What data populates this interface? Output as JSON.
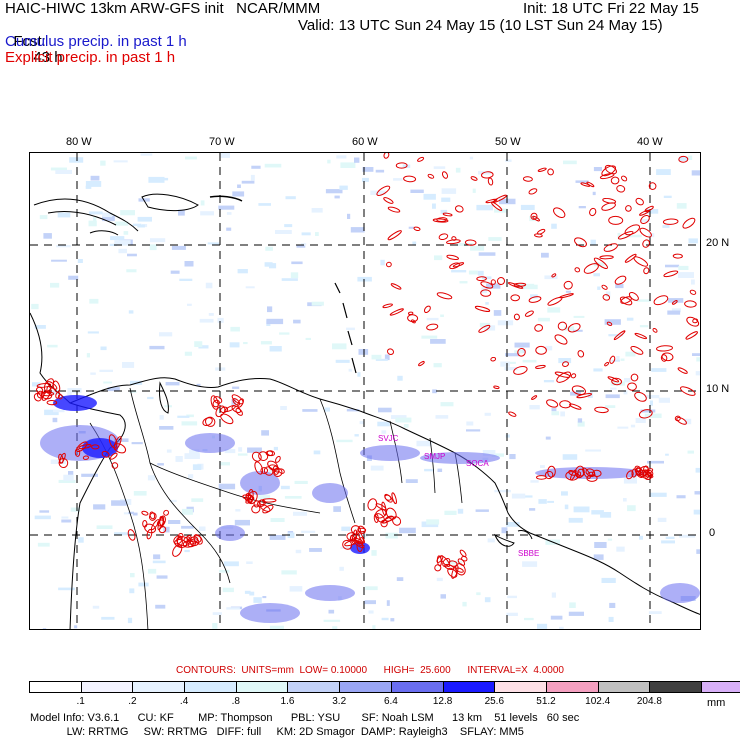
{
  "header": {
    "model_title": "HAIC-HIWC 13km ARW-GFS init   NCAR/MMM",
    "init": "Init: 18 UTC Fri 22 May 15",
    "fcst_label": "Fcst:",
    "fcst_value": "43 h",
    "valid": "Valid: 13 UTC Sun 24 May 15 (10 LST Sun 24 May 15)",
    "cumulus_label": "Cumulus precip. in past 1 h",
    "explicit_label": "Explicit precip. in past 1 h"
  },
  "colors": {
    "cumulus": "#1a1acc",
    "explicit": "#e00000",
    "station": "#cc00cc",
    "grid": "#000000"
  },
  "map": {
    "lon_labels": [
      "80 W",
      "70 W",
      "60 W",
      "50 W",
      "40 W"
    ],
    "lat_labels": [
      "20 N",
      "10 N",
      "0"
    ],
    "stations": [
      "SVJC",
      "SMJP",
      "SOCA",
      "SBBE"
    ]
  },
  "legend": {
    "contours_line": "CONTOURS:  UNITS=mm  LOW= 0.10000      HIGH=  25.600      INTERVAL=X  4.0000",
    "units": "mm",
    "colors": [
      "#ffffff",
      "#f3f3ff",
      "#e6f2ff",
      "#d6ecff",
      "#e0f8f8",
      "#c3d2f8",
      "#9aa6f4",
      "#6a6ef0",
      "#1a1aff",
      "#fde0e6",
      "#f4a0c0",
      "#c0c0c0",
      "#404040",
      "#d8b0f8"
    ],
    "tick_labels": [
      ".1",
      ".2",
      ".4",
      ".8",
      "1.6",
      "3.2",
      "6.4",
      "12.8",
      "25.6",
      "51.2",
      "102.4",
      "204.8"
    ]
  },
  "footer": {
    "line1": "Model Info: V3.6.1      CU: KF        MP: Thompson      PBL: YSU       SF: Noah LSM      13 km    51 levels   60 sec",
    "line2": "            LW: RRTMG     SW: RRTMG   DIFF: full     KM: 2D Smagor  DAMP: Rayleigh3    SFLAY: MM5"
  }
}
